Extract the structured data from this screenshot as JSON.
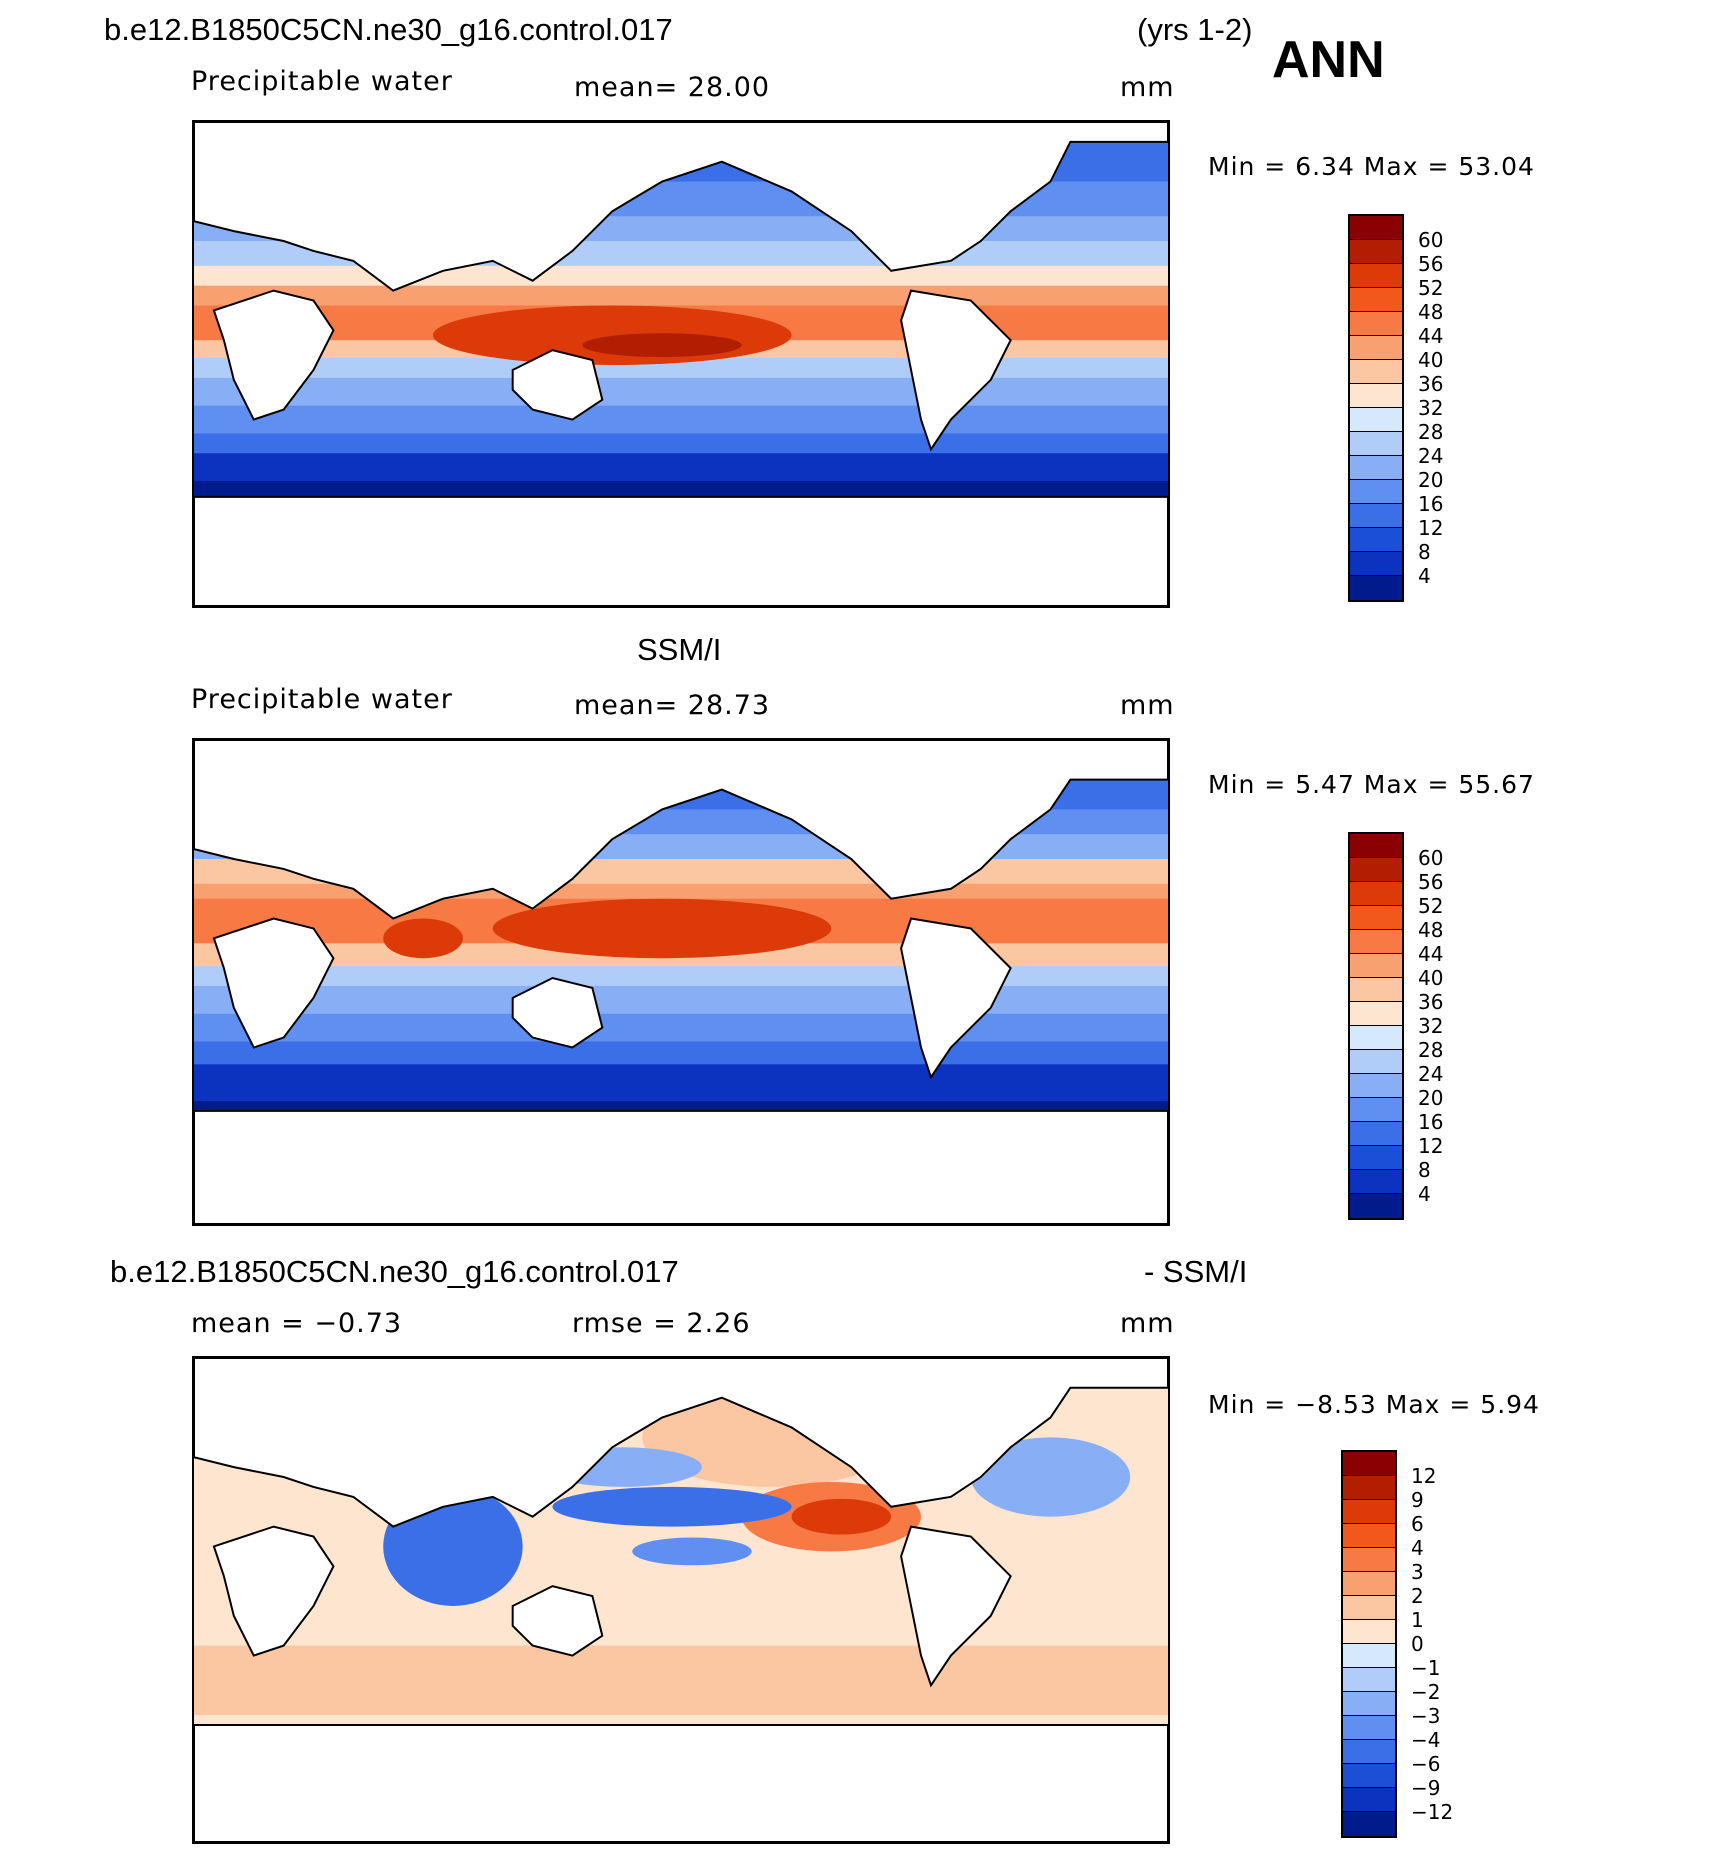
{
  "header": {
    "case_name": "b.e12.B1850C5CN.ne30_g16.control.017",
    "years": "(yrs 1-2)",
    "season": "ANN"
  },
  "panels": [
    {
      "id": "model",
      "title": "",
      "left_label": "Precipitable water",
      "center_label": "mean=   28.00",
      "units": "mm",
      "minmax": "Min =      6.34  Max =    53.04",
      "colorbar": {
        "labels": [
          "60",
          "56",
          "52",
          "48",
          "44",
          "40",
          "36",
          "32",
          "28",
          "24",
          "20",
          "16",
          "12",
          "8",
          "4"
        ],
        "colors": [
          "#8b0000",
          "#b21e02",
          "#dc3a08",
          "#f2571c",
          "#f77a45",
          "#f9a070",
          "#fbc6a2",
          "#fde5d0",
          "#d6e8fb",
          "#b0ccf8",
          "#88aef5",
          "#5f8ff0",
          "#3a6fe8",
          "#1c4fd8",
          "#0b33c0",
          "#001b8c"
        ]
      }
    },
    {
      "id": "obs",
      "title": "SSM/I",
      "left_label": "Precipitable water",
      "center_label": "mean=   28.73",
      "units": "mm",
      "minmax": "Min =      5.47  Max =    55.67",
      "colorbar": {
        "labels": [
          "60",
          "56",
          "52",
          "48",
          "44",
          "40",
          "36",
          "32",
          "28",
          "24",
          "20",
          "16",
          "12",
          "8",
          "4"
        ],
        "colors": [
          "#8b0000",
          "#b21e02",
          "#dc3a08",
          "#f2571c",
          "#f77a45",
          "#f9a070",
          "#fbc6a2",
          "#fde5d0",
          "#d6e8fb",
          "#b0ccf8",
          "#88aef5",
          "#5f8ff0",
          "#3a6fe8",
          "#1c4fd8",
          "#0b33c0",
          "#001b8c"
        ]
      }
    },
    {
      "id": "diff",
      "title_left": "b.e12.B1850C5CN.ne30_g16.control.017",
      "title_right": "- SSM/I",
      "left_label": "mean =    −0.73",
      "center_label": "rmse =     2.26",
      "units": "mm",
      "minmax": "Min =    −8.53  Max =       5.94",
      "colorbar": {
        "labels": [
          "12",
          "9",
          "6",
          "4",
          "3",
          "2",
          "1",
          "0",
          "−1",
          "−2",
          "−3",
          "−4",
          "−6",
          "−9",
          "−12"
        ],
        "colors": [
          "#8b0000",
          "#b21e02",
          "#dc3a08",
          "#f2571c",
          "#f77a45",
          "#f9a070",
          "#fbc6a2",
          "#fde5d0",
          "#d6e8fb",
          "#b0ccf8",
          "#88aef5",
          "#5f8ff0",
          "#3a6fe8",
          "#1c4fd8",
          "#0b33c0",
          "#001b8c"
        ]
      }
    }
  ]
}
